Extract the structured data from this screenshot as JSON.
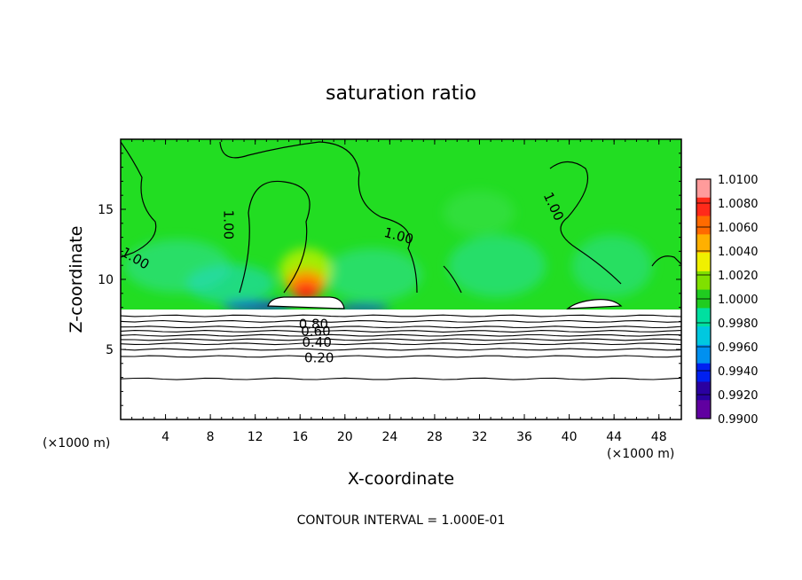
{
  "chart_data": {
    "type": "heatmap",
    "title": "saturation ratio",
    "xlabel": "X-coordinate",
    "ylabel": "Z-coordinate",
    "x_unit_left": "(×1000 m)",
    "x_unit_right": "(×1000 m)",
    "footer": "CONTOUR INTERVAL = 1.000E-01",
    "xlim": [
      0,
      50
    ],
    "ylim": [
      0,
      20
    ],
    "xticks": [
      4,
      8,
      12,
      16,
      20,
      24,
      28,
      32,
      36,
      40,
      44,
      48
    ],
    "xtick_labels": [
      "4",
      "8",
      "12",
      "16",
      "20",
      "24",
      "28",
      "32",
      "36",
      "40",
      "44",
      "48"
    ],
    "yticks": [
      5,
      10,
      15
    ],
    "ytick_labels": [
      "5",
      "10",
      "15"
    ],
    "colorbar": {
      "labels": [
        "1.0100",
        "1.0080",
        "1.0060",
        "1.0040",
        "1.0020",
        "1.0000",
        "0.9980",
        "0.9960",
        "0.9940",
        "0.9920",
        "0.9900"
      ],
      "min": 0.99,
      "max": 1.01,
      "colors": [
        "#ff9b9b",
        "#ff2a1a",
        "#ff6a00",
        "#ffb000",
        "#f0f000",
        "#80e000",
        "#20cc20",
        "#00e0a0",
        "#00c8e0",
        "#0090f0",
        "#0020f0",
        "#2a00a0",
        "#6000a0"
      ]
    },
    "contour_labels": [
      {
        "text": "1.00",
        "x": 9.6,
        "y": 13.9,
        "rotate": 90
      },
      {
        "text": "1.00",
        "x": 1.3,
        "y": 11.5,
        "rotate": 30
      },
      {
        "text": "1.00",
        "x": 24.8,
        "y": 13.1,
        "rotate": 15
      },
      {
        "text": "1.00",
        "x": 38.6,
        "y": 15.2,
        "rotate": 65
      },
      {
        "text": "0.80",
        "x": 17.2,
        "y": 6.8,
        "rotate": 0
      },
      {
        "text": "0.60",
        "x": 17.4,
        "y": 6.3,
        "rotate": 0
      },
      {
        "text": "0.40",
        "x": 17.5,
        "y": 5.5,
        "rotate": 0
      },
      {
        "text": "0.20",
        "x": 17.7,
        "y": 4.4,
        "rotate": 0
      }
    ],
    "horizontal_contours_z": [
      7.4,
      7.0,
      6.6,
      6.3,
      6.0,
      5.7,
      5.4,
      5.0,
      4.5,
      2.9
    ]
  }
}
